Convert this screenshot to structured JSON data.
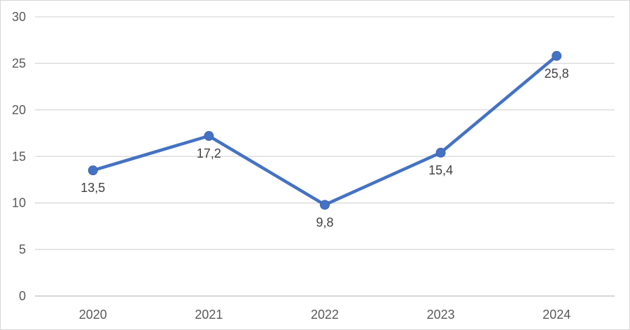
{
  "chart_data": {
    "type": "line",
    "title": "",
    "xlabel": "",
    "ylabel": "",
    "categories": [
      "2020",
      "2021",
      "2022",
      "2023",
      "2024"
    ],
    "series": [
      {
        "name": "",
        "values": [
          13.5,
          17.2,
          9.8,
          15.4,
          25.8
        ],
        "value_labels": [
          "13,5",
          "17,2",
          "9,8",
          "15,4",
          "25,8"
        ]
      }
    ],
    "ylim": [
      0,
      30
    ],
    "y_ticks": [
      0,
      5,
      10,
      15,
      20,
      25,
      30
    ],
    "y_tick_labels": [
      "0",
      "5",
      "10",
      "15",
      "20",
      "25",
      "30"
    ],
    "grid": true,
    "legend": false,
    "data_label_position": "below",
    "colors": {
      "line": "#4472C4",
      "marker_fill": "#4472C4",
      "marker_edge": "#3E66B0",
      "gridline": "#D9D9D9",
      "axis_line": "#BFBFBF",
      "tick_label": "#595959",
      "data_label": "#404040",
      "background": "#FFFFFF",
      "border": "#D6D6D6"
    }
  }
}
